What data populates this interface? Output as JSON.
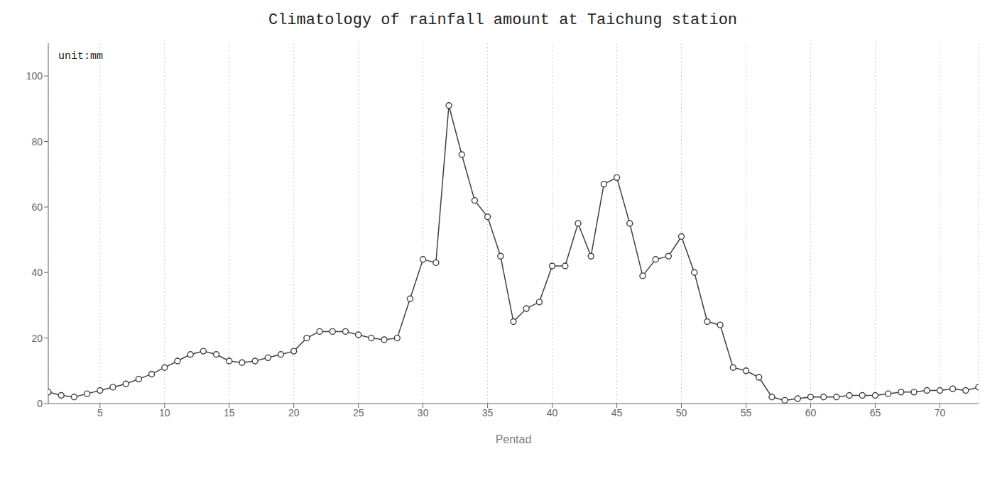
{
  "chart_data": {
    "type": "line",
    "title": "Climatology of rainfall amount at Taichung station",
    "xlabel": "Pentad",
    "annotation": "unit:mm",
    "x": [
      1,
      2,
      3,
      4,
      5,
      6,
      7,
      8,
      9,
      10,
      11,
      12,
      13,
      14,
      15,
      16,
      17,
      18,
      19,
      20,
      21,
      22,
      23,
      24,
      25,
      26,
      27,
      28,
      29,
      30,
      31,
      32,
      33,
      34,
      35,
      36,
      37,
      38,
      39,
      40,
      41,
      42,
      43,
      44,
      45,
      46,
      47,
      48,
      49,
      50,
      51,
      52,
      53,
      54,
      55,
      56,
      57,
      58,
      59,
      60,
      61,
      62,
      63,
      64,
      65,
      66,
      67,
      68,
      69,
      70,
      71,
      72,
      73
    ],
    "values": [
      3.5,
      2.5,
      2.0,
      3.0,
      4.0,
      5.0,
      6.0,
      7.5,
      9.0,
      11.0,
      13.0,
      15.0,
      16.0,
      15.0,
      13.0,
      12.5,
      13.0,
      14.0,
      15.0,
      16.0,
      20.0,
      22.0,
      22.0,
      22.0,
      21.0,
      20.0,
      19.5,
      20.0,
      32.0,
      44.0,
      43.0,
      91.0,
      76.0,
      62.0,
      57.0,
      45.0,
      25.0,
      29.0,
      31.0,
      42.0,
      42.0,
      55.0,
      45.0,
      67.0,
      69.0,
      55.0,
      39.0,
      44.0,
      45.0,
      51.0,
      40.0,
      25.0,
      24.0,
      11.0,
      10.0,
      8.0,
      2.0,
      1.0,
      1.5,
      2.0,
      2.0,
      2.0,
      2.5,
      2.5,
      2.5,
      3.0,
      3.5,
      3.5,
      4.0,
      4.0,
      4.5,
      4.0,
      5.0
    ],
    "color": "#404040",
    "marker": "open_circle",
    "xlim": [
      1,
      73
    ],
    "xticks": [
      5,
      10,
      15,
      20,
      25,
      30,
      35,
      40,
      45,
      50,
      55,
      60,
      65,
      70
    ],
    "ylim": [
      0,
      110
    ],
    "yticks": [
      0,
      20,
      40,
      60,
      80,
      100
    ],
    "grid": "x"
  }
}
